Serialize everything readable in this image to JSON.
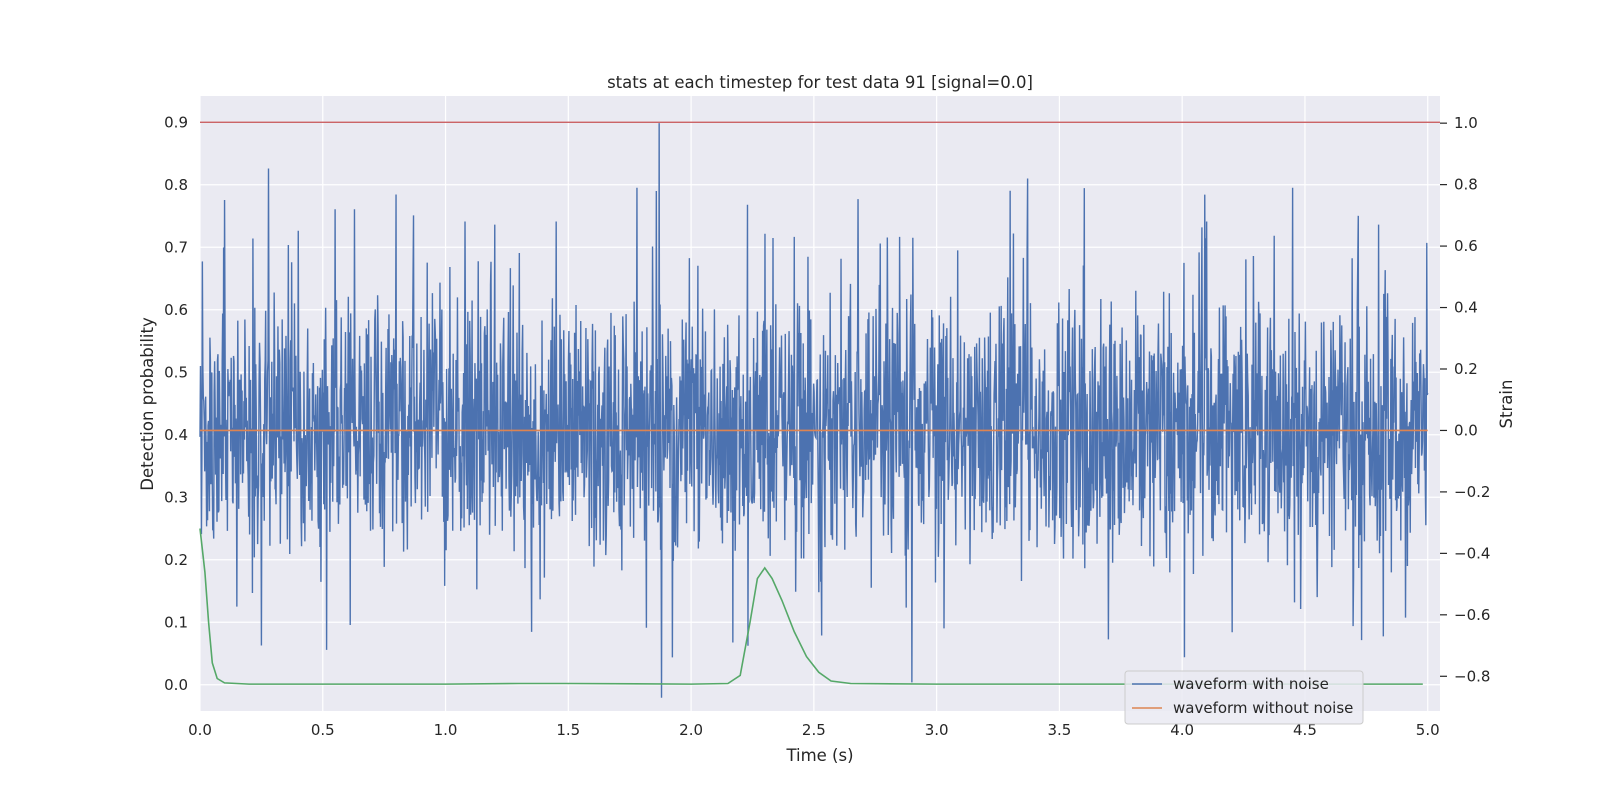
{
  "chart_data": {
    "type": "line",
    "title": "stats at each timestep for test data 91 [signal=0.0]",
    "xlabel": "Time (s)",
    "ylabel_left": "Detection probability",
    "ylabel_right": "Strain",
    "xlim": [
      0.0,
      5.05
    ],
    "ylim_left": [
      -0.042,
      0.942
    ],
    "ylim_right": [
      -0.913,
      1.0884
    ],
    "x_ticks": [
      "0.0",
      "0.5",
      "1.0",
      "1.5",
      "2.0",
      "2.5",
      "3.0",
      "3.5",
      "4.0",
      "4.5",
      "5.0"
    ],
    "y_left_ticks": [
      "0.0",
      "0.1",
      "0.2",
      "0.3",
      "0.4",
      "0.5",
      "0.6",
      "0.7",
      "0.8",
      "0.9"
    ],
    "y_right_ticks": [
      "−0.8",
      "−0.6",
      "−0.4",
      "−0.2",
      "0.0",
      "0.2",
      "0.4",
      "0.6",
      "0.8",
      "1.0"
    ],
    "grid": true,
    "legend_position": "lower-right",
    "colors": {
      "background": "#eaeaf2",
      "grid": "#ffffff",
      "waveform_with_noise": "#4c72b0",
      "waveform_without_noise": "#dd8452",
      "detection_probability": "#55a868",
      "threshold": "#c44e52"
    },
    "series": [
      {
        "name": "waveform with noise",
        "axis": "right",
        "description_level": "noise band roughly between -0.45 and 0.35 strain with peaks",
        "spikes": [
          {
            "x": 0.01,
            "y": 0.55
          },
          {
            "x": 0.1,
            "y": 0.75
          },
          {
            "x": 0.25,
            "y": -0.7
          },
          {
            "x": 0.4,
            "y": 0.65
          },
          {
            "x": 0.55,
            "y": 0.72
          },
          {
            "x": 0.63,
            "y": 0.72
          },
          {
            "x": 0.87,
            "y": 0.7
          },
          {
            "x": 1.08,
            "y": 0.68
          },
          {
            "x": 1.2,
            "y": 0.67
          },
          {
            "x": 1.45,
            "y": 0.68
          },
          {
            "x": 1.78,
            "y": 0.79
          },
          {
            "x": 1.87,
            "y": 1.0
          },
          {
            "x": 1.88,
            "y": -0.87
          },
          {
            "x": 2.17,
            "y": -0.69
          },
          {
            "x": 2.3,
            "y": 0.64
          },
          {
            "x": 2.42,
            "y": 0.63
          },
          {
            "x": 2.85,
            "y": 0.63
          },
          {
            "x": 2.9,
            "y": -0.82
          },
          {
            "x": 3.3,
            "y": 0.78
          },
          {
            "x": 3.37,
            "y": 0.82
          },
          {
            "x": 3.7,
            "y": -0.68
          },
          {
            "x": 4.1,
            "y": 0.68
          },
          {
            "x": 4.45,
            "y": 0.79
          },
          {
            "x": 4.8,
            "y": 0.67
          },
          {
            "x": 4.82,
            "y": -0.67
          }
        ]
      },
      {
        "name": "waveform without noise",
        "axis": "right",
        "points": [
          {
            "x": 0.0,
            "y": 0.0
          },
          {
            "x": 5.0,
            "y": 0.0
          }
        ]
      },
      {
        "name": "",
        "axis": "left",
        "points": [
          {
            "x": 0.0,
            "y": 0.25
          },
          {
            "x": 0.02,
            "y": 0.18
          },
          {
            "x": 0.035,
            "y": 0.1
          },
          {
            "x": 0.05,
            "y": 0.035
          },
          {
            "x": 0.07,
            "y": 0.01
          },
          {
            "x": 0.1,
            "y": 0.003
          },
          {
            "x": 0.2,
            "y": 0.001
          },
          {
            "x": 1.0,
            "y": 0.001
          },
          {
            "x": 1.3,
            "y": 0.002
          },
          {
            "x": 1.5,
            "y": 0.002
          },
          {
            "x": 2.0,
            "y": 0.001
          },
          {
            "x": 2.15,
            "y": 0.002
          },
          {
            "x": 2.2,
            "y": 0.015
          },
          {
            "x": 2.24,
            "y": 0.1
          },
          {
            "x": 2.27,
            "y": 0.17
          },
          {
            "x": 2.3,
            "y": 0.187
          },
          {
            "x": 2.33,
            "y": 0.17
          },
          {
            "x": 2.37,
            "y": 0.135
          },
          {
            "x": 2.42,
            "y": 0.085
          },
          {
            "x": 2.47,
            "y": 0.045
          },
          {
            "x": 2.52,
            "y": 0.02
          },
          {
            "x": 2.57,
            "y": 0.006
          },
          {
            "x": 2.65,
            "y": 0.002
          },
          {
            "x": 3.0,
            "y": 0.001
          },
          {
            "x": 4.0,
            "y": 0.001
          },
          {
            "x": 4.98,
            "y": 0.001
          }
        ]
      },
      {
        "name": "",
        "axis": "left",
        "points": [
          {
            "x": 0.0,
            "y": 0.9
          },
          {
            "x": 5.05,
            "y": 0.9
          }
        ]
      }
    ]
  }
}
